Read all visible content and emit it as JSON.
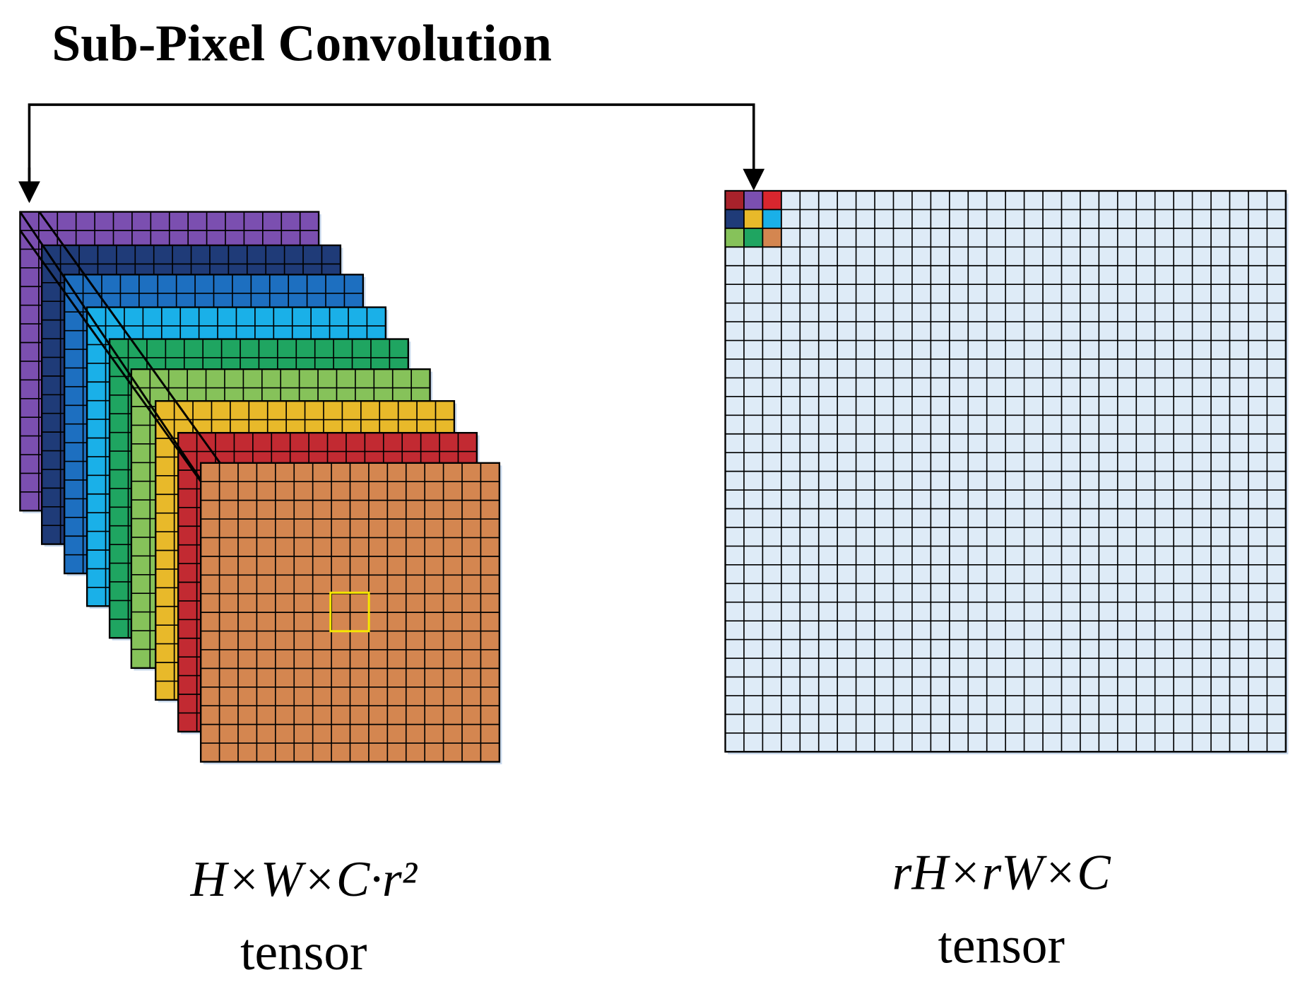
{
  "title": "Sub-Pixel Convolution",
  "left_label": {
    "formula": "H×W×C·r²",
    "caption": "tensor"
  },
  "right_label": {
    "formula": "rH×rW×C",
    "caption": "tensor"
  }
}
